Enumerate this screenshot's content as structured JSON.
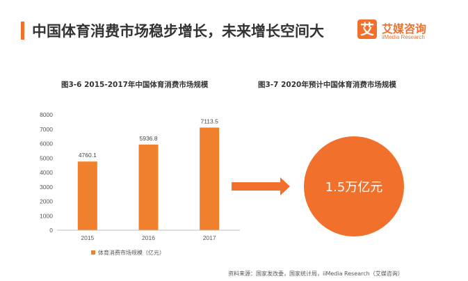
{
  "header": {
    "title": "中国体育消费市场稳步增长，未来增长空间大",
    "accent_color": "#f0702c"
  },
  "logo": {
    "mark": "艾",
    "name_cn": "艾媒咨询",
    "name_en": "iiMedia Research"
  },
  "figure_left": {
    "title": "图3-6  2015-2017年中国体育消费市场规模"
  },
  "figure_right": {
    "title": "图3-7  2020年预计中国体育消费市场规模",
    "circle_label": "1.5万亿元",
    "arrow_icon": "right-arrow-icon"
  },
  "chart_data": {
    "type": "bar",
    "categories": [
      "2015",
      "2016",
      "2017"
    ],
    "series": [
      {
        "name": "体育消费市场规模（亿元）",
        "values": [
          4760.1,
          5936.8,
          7113.5
        ],
        "color": "#f0802c"
      }
    ],
    "data_labels": [
      "4760.1",
      "5936.8",
      "7113.5"
    ],
    "ylim": [
      0,
      8000
    ],
    "yticks": [
      "0",
      "1000",
      "2000",
      "3000",
      "4000",
      "5000",
      "6000",
      "7000",
      "8000"
    ],
    "legend_position": "bottom",
    "grid": false
  },
  "source": "资料来源：国家发改委，国家统计局，iiMedia Research（艾媒咨询）"
}
